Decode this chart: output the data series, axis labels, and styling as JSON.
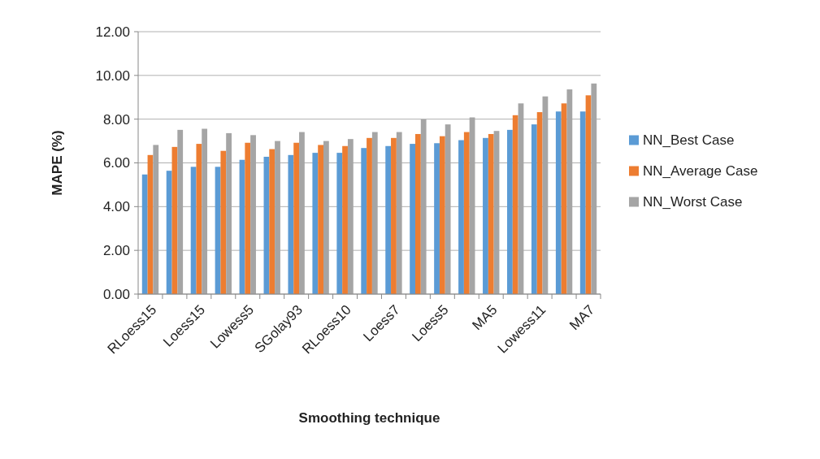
{
  "chart_data": {
    "type": "bar",
    "xlabel": "Smoothing technique",
    "ylabel": "MAPE (%)",
    "categories": [
      "RLoess15",
      null,
      "Loess15",
      null,
      "Lowess5",
      null,
      "SGolay93",
      null,
      "RLoess10",
      null,
      "Loess7",
      null,
      "Loess5",
      null,
      "MA5",
      null,
      "Lowess11",
      null,
      "MA7"
    ],
    "series": [
      {
        "name": "NN_Best Case",
        "color": "#5b9bd5",
        "values": [
          5.47,
          5.64,
          5.82,
          5.82,
          6.14,
          6.28,
          6.36,
          6.46,
          6.46,
          6.68,
          6.77,
          6.87,
          6.9,
          7.04,
          7.14,
          7.51,
          7.76,
          8.35,
          8.35
        ]
      },
      {
        "name": "NN_Average Case",
        "color": "#ed7d31",
        "values": [
          6.36,
          6.73,
          6.87,
          6.55,
          6.92,
          6.63,
          6.92,
          6.82,
          6.77,
          7.14,
          7.14,
          7.32,
          7.22,
          7.41,
          7.32,
          8.18,
          8.32,
          8.72,
          9.09
        ]
      },
      {
        "name": "NN_Worst Case",
        "color": "#a5a5a5",
        "values": [
          6.82,
          7.51,
          7.56,
          7.36,
          7.27,
          7.0,
          7.41,
          7.0,
          7.09,
          7.41,
          7.41,
          7.99,
          7.76,
          8.08,
          7.46,
          8.72,
          9.04,
          9.36,
          9.63
        ]
      }
    ],
    "ylim": [
      0,
      12
    ],
    "yticks": [
      {
        "value": 0,
        "label": "0.00"
      },
      {
        "value": 2,
        "label": "2.00"
      },
      {
        "value": 4,
        "label": "4.00"
      },
      {
        "value": 6,
        "label": "6.00"
      },
      {
        "value": 8,
        "label": "8.00"
      },
      {
        "value": 10,
        "label": "10.00"
      },
      {
        "value": 12,
        "label": "12.00"
      }
    ],
    "grid": "y",
    "legend": "right"
  }
}
